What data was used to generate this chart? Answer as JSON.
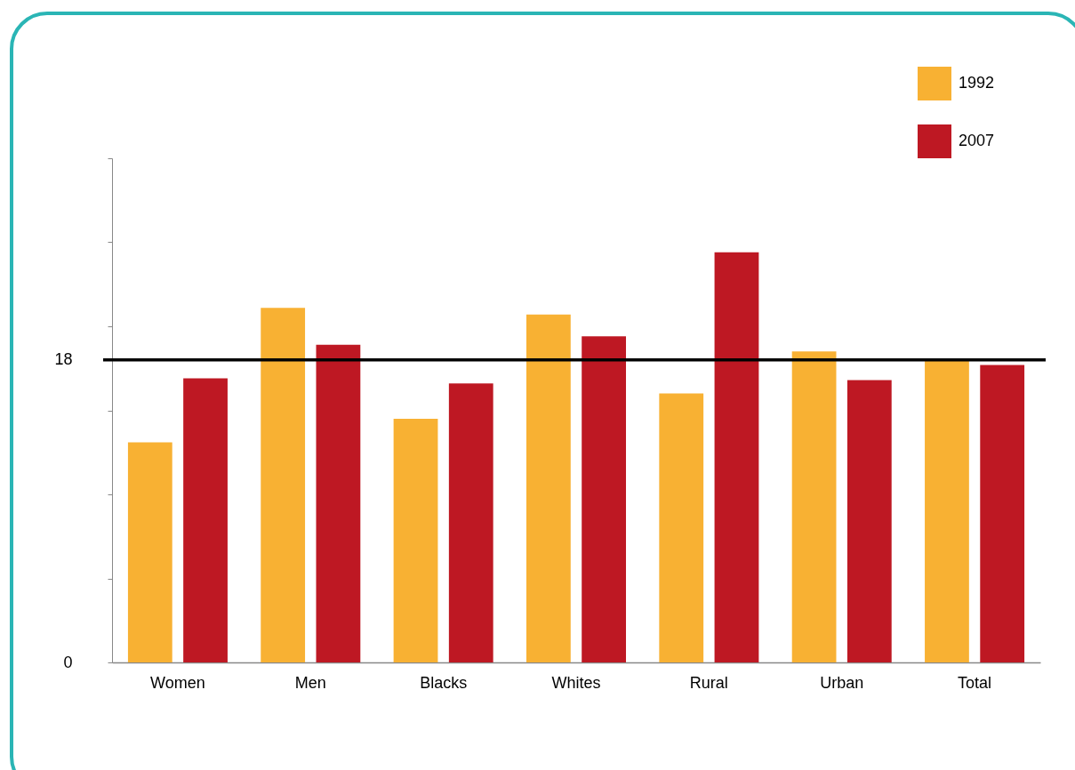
{
  "chart_data": {
    "type": "bar",
    "categories": [
      "Women",
      "Men",
      "Blacks",
      "Whites",
      "Rural",
      "Urban",
      "Total"
    ],
    "series": [
      {
        "name": "1992",
        "color": "#f8b133",
        "values": [
          13.1,
          21.1,
          14.5,
          20.7,
          16.0,
          18.5,
          18.0
        ]
      },
      {
        "name": "2007",
        "color": "#be1823",
        "values": [
          16.9,
          18.9,
          16.6,
          19.4,
          24.4,
          16.8,
          17.7
        ]
      }
    ],
    "ylim": [
      0,
      30
    ],
    "yticks": [
      0,
      {
        "value": 5,
        "label": null
      },
      {
        "value": 10,
        "label": null
      },
      {
        "value": 15,
        "label": null
      },
      18,
      {
        "value": 20,
        "label": null
      },
      {
        "value": 25,
        "label": null
      },
      {
        "value": 30,
        "label": null
      }
    ],
    "ref_lines": [
      {
        "axis": "y",
        "value": 18,
        "color": "#000000"
      }
    ],
    "legend": "top right",
    "grid": false
  }
}
